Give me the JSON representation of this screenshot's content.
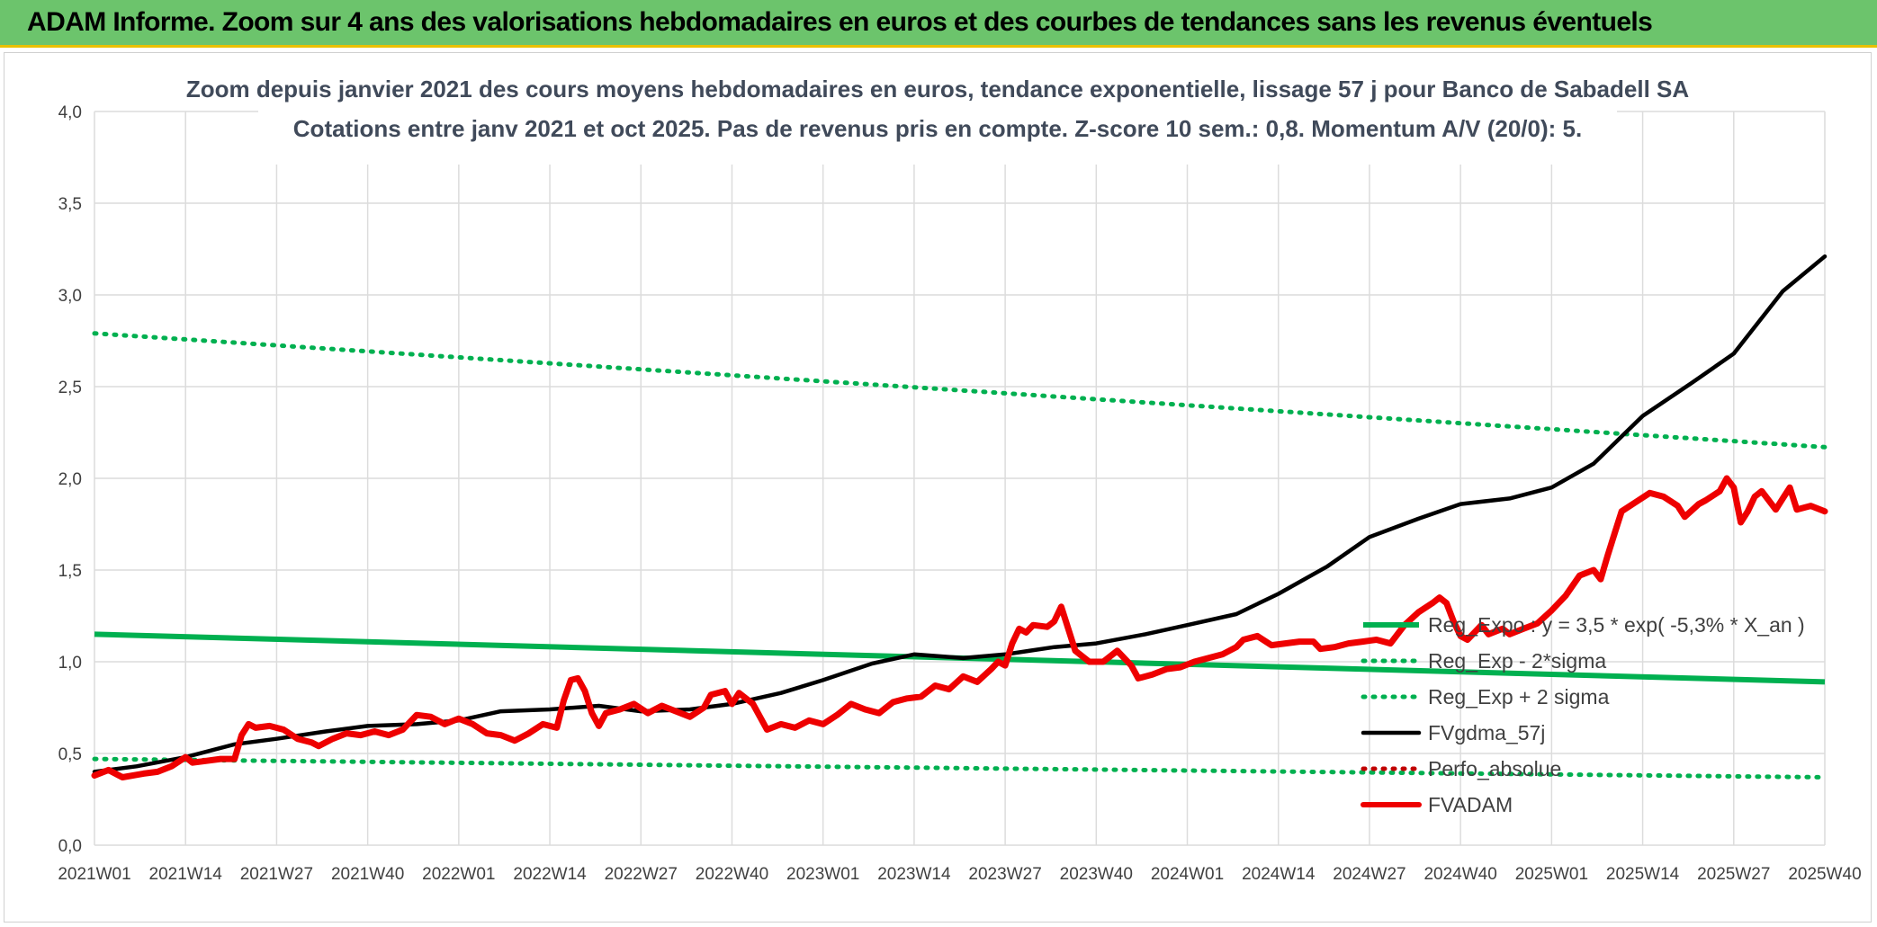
{
  "header": {
    "title": "ADAM Informe. Zoom sur 4 ans des valorisations hebdomadaires en euros et des courbes de tendances sans les revenus éventuels"
  },
  "colors": {
    "header_bg": "#6cc46c",
    "header_border": "#e8c000",
    "reg_green": "#00b050",
    "fv57": "#000000",
    "fvadam": "#ee0000",
    "perfo": "#c00000"
  },
  "chart_data": {
    "type": "line",
    "title_line1": "Zoom depuis janvier 2021 des cours moyens hebdomadaires en euros, tendance exponentielle, lissage 57 j pour Banco de Sabadell SA",
    "title_line2": "Cotations entre janv 2021 et oct 2025. Pas de revenus pris en compte. Z-score 10 sem.: 0,8. Momentum A/V (20/0): 5.",
    "ylim": [
      0,
      4
    ],
    "y_ticks": [
      "0,0",
      "0,5",
      "1,0",
      "1,5",
      "2,0",
      "2,5",
      "3,0",
      "3,5",
      "4,0"
    ],
    "x_ticks": [
      "2021W01",
      "2021W14",
      "2021W27",
      "2021W40",
      "2022W01",
      "2022W14",
      "2022W27",
      "2022W40",
      "2023W01",
      "2023W14",
      "2023W27",
      "2023W40",
      "2024W01",
      "2024W14",
      "2024W27",
      "2024W40",
      "2025W01",
      "2025W14",
      "2025W27",
      "2025W40"
    ],
    "x_range_weeks": [
      0,
      247
    ],
    "legend_position": "right-bottom",
    "series": [
      {
        "name": "Reg_Expo : y = 3,5 * exp( -5,3% *  X_an )",
        "style": "solid",
        "color": "#00b050",
        "points": [
          [
            0,
            1.15
          ],
          [
            247,
            0.89
          ]
        ]
      },
      {
        "name": "Reg_Exp - 2*sigma",
        "style": "dotted",
        "color": "#00b050",
        "points": [
          [
            0,
            0.47
          ],
          [
            247,
            0.37
          ]
        ]
      },
      {
        "name": "Reg_Exp + 2 sigma",
        "style": "dotted",
        "color": "#00b050",
        "points": [
          [
            0,
            2.79
          ],
          [
            247,
            2.17
          ]
        ]
      },
      {
        "name": "FVgdma_57j",
        "style": "solid",
        "color": "#000000",
        "points": [
          [
            0,
            0.4
          ],
          [
            6,
            0.43
          ],
          [
            13,
            0.48
          ],
          [
            20,
            0.55
          ],
          [
            26,
            0.58
          ],
          [
            33,
            0.62
          ],
          [
            39,
            0.65
          ],
          [
            46,
            0.66
          ],
          [
            52,
            0.68
          ],
          [
            58,
            0.73
          ],
          [
            65,
            0.74
          ],
          [
            72,
            0.76
          ],
          [
            78,
            0.73
          ],
          [
            85,
            0.74
          ],
          [
            91,
            0.77
          ],
          [
            98,
            0.83
          ],
          [
            104,
            0.9
          ],
          [
            111,
            0.99
          ],
          [
            117,
            1.04
          ],
          [
            124,
            1.02
          ],
          [
            130,
            1.04
          ],
          [
            137,
            1.08
          ],
          [
            143,
            1.1
          ],
          [
            150,
            1.15
          ],
          [
            156,
            1.2
          ],
          [
            163,
            1.26
          ],
          [
            169,
            1.37
          ],
          [
            176,
            1.52
          ],
          [
            182,
            1.68
          ],
          [
            189,
            1.78
          ],
          [
            195,
            1.86
          ],
          [
            202,
            1.89
          ],
          [
            208,
            1.95
          ],
          [
            214,
            2.08
          ],
          [
            221,
            2.34
          ],
          [
            228,
            2.52
          ],
          [
            234,
            2.68
          ],
          [
            241,
            3.02
          ],
          [
            247,
            3.21
          ]
        ]
      },
      {
        "name": "Perfo_absolue",
        "style": "dotted",
        "color": "#c00000",
        "points": []
      },
      {
        "name": "FVADAM",
        "style": "solid",
        "color": "#ee0000",
        "points": [
          [
            0,
            0.38
          ],
          [
            2,
            0.41
          ],
          [
            4,
            0.37
          ],
          [
            7,
            0.39
          ],
          [
            9,
            0.4
          ],
          [
            11,
            0.43
          ],
          [
            13,
            0.48
          ],
          [
            14,
            0.45
          ],
          [
            16,
            0.46
          ],
          [
            18,
            0.47
          ],
          [
            20,
            0.47
          ],
          [
            21,
            0.6
          ],
          [
            22,
            0.66
          ],
          [
            23,
            0.64
          ],
          [
            25,
            0.65
          ],
          [
            27,
            0.63
          ],
          [
            29,
            0.58
          ],
          [
            31,
            0.56
          ],
          [
            32,
            0.54
          ],
          [
            34,
            0.58
          ],
          [
            36,
            0.61
          ],
          [
            38,
            0.6
          ],
          [
            40,
            0.62
          ],
          [
            42,
            0.6
          ],
          [
            44,
            0.63
          ],
          [
            46,
            0.71
          ],
          [
            48,
            0.7
          ],
          [
            50,
            0.66
          ],
          [
            52,
            0.69
          ],
          [
            54,
            0.66
          ],
          [
            56,
            0.61
          ],
          [
            58,
            0.6
          ],
          [
            60,
            0.57
          ],
          [
            62,
            0.61
          ],
          [
            64,
            0.66
          ],
          [
            66,
            0.64
          ],
          [
            67,
            0.79
          ],
          [
            68,
            0.9
          ],
          [
            69,
            0.91
          ],
          [
            70,
            0.84
          ],
          [
            71,
            0.72
          ],
          [
            72,
            0.65
          ],
          [
            73,
            0.72
          ],
          [
            75,
            0.74
          ],
          [
            77,
            0.77
          ],
          [
            79,
            0.72
          ],
          [
            81,
            0.76
          ],
          [
            83,
            0.73
          ],
          [
            85,
            0.7
          ],
          [
            87,
            0.75
          ],
          [
            88,
            0.82
          ],
          [
            90,
            0.84
          ],
          [
            91,
            0.77
          ],
          [
            92,
            0.83
          ],
          [
            94,
            0.77
          ],
          [
            95,
            0.7
          ],
          [
            96,
            0.63
          ],
          [
            98,
            0.66
          ],
          [
            100,
            0.64
          ],
          [
            102,
            0.68
          ],
          [
            104,
            0.66
          ],
          [
            106,
            0.71
          ],
          [
            108,
            0.77
          ],
          [
            110,
            0.74
          ],
          [
            112,
            0.72
          ],
          [
            114,
            0.78
          ],
          [
            116,
            0.8
          ],
          [
            118,
            0.81
          ],
          [
            120,
            0.87
          ],
          [
            122,
            0.85
          ],
          [
            124,
            0.92
          ],
          [
            126,
            0.89
          ],
          [
            128,
            0.96
          ],
          [
            129,
            1.0
          ],
          [
            130,
            0.98
          ],
          [
            131,
            1.1
          ],
          [
            132,
            1.18
          ],
          [
            133,
            1.16
          ],
          [
            134,
            1.2
          ],
          [
            136,
            1.19
          ],
          [
            137,
            1.22
          ],
          [
            138,
            1.3
          ],
          [
            139,
            1.18
          ],
          [
            140,
            1.06
          ],
          [
            142,
            1.0
          ],
          [
            144,
            1.0
          ],
          [
            146,
            1.06
          ],
          [
            148,
            0.98
          ],
          [
            149,
            0.91
          ],
          [
            151,
            0.93
          ],
          [
            153,
            0.96
          ],
          [
            155,
            0.97
          ],
          [
            157,
            1.0
          ],
          [
            159,
            1.02
          ],
          [
            161,
            1.04
          ],
          [
            163,
            1.08
          ],
          [
            164,
            1.12
          ],
          [
            166,
            1.14
          ],
          [
            168,
            1.09
          ],
          [
            170,
            1.1
          ],
          [
            172,
            1.11
          ],
          [
            174,
            1.11
          ],
          [
            175,
            1.07
          ],
          [
            177,
            1.08
          ],
          [
            179,
            1.1
          ],
          [
            181,
            1.11
          ],
          [
            183,
            1.12
          ],
          [
            185,
            1.1
          ],
          [
            187,
            1.2
          ],
          [
            189,
            1.27
          ],
          [
            191,
            1.32
          ],
          [
            192,
            1.35
          ],
          [
            193,
            1.32
          ],
          [
            194,
            1.22
          ],
          [
            195,
            1.14
          ],
          [
            196,
            1.12
          ],
          [
            198,
            1.2
          ],
          [
            199,
            1.15
          ],
          [
            201,
            1.18
          ],
          [
            202,
            1.15
          ],
          [
            204,
            1.18
          ],
          [
            206,
            1.21
          ],
          [
            208,
            1.28
          ],
          [
            210,
            1.36
          ],
          [
            212,
            1.47
          ],
          [
            214,
            1.5
          ],
          [
            215,
            1.45
          ],
          [
            216,
            1.58
          ],
          [
            217,
            1.7
          ],
          [
            218,
            1.82
          ],
          [
            220,
            1.87
          ],
          [
            222,
            1.92
          ],
          [
            224,
            1.9
          ],
          [
            226,
            1.85
          ],
          [
            227,
            1.79
          ],
          [
            229,
            1.86
          ],
          [
            230,
            1.88
          ],
          [
            232,
            1.93
          ],
          [
            233,
            2.0
          ],
          [
            234,
            1.95
          ],
          [
            235,
            1.76
          ],
          [
            236,
            1.82
          ],
          [
            237,
            1.9
          ],
          [
            238,
            1.93
          ],
          [
            240,
            1.83
          ],
          [
            241,
            1.89
          ],
          [
            242,
            1.95
          ],
          [
            243,
            1.83
          ],
          [
            245,
            1.85
          ],
          [
            247,
            1.82
          ]
        ]
      }
    ]
  }
}
